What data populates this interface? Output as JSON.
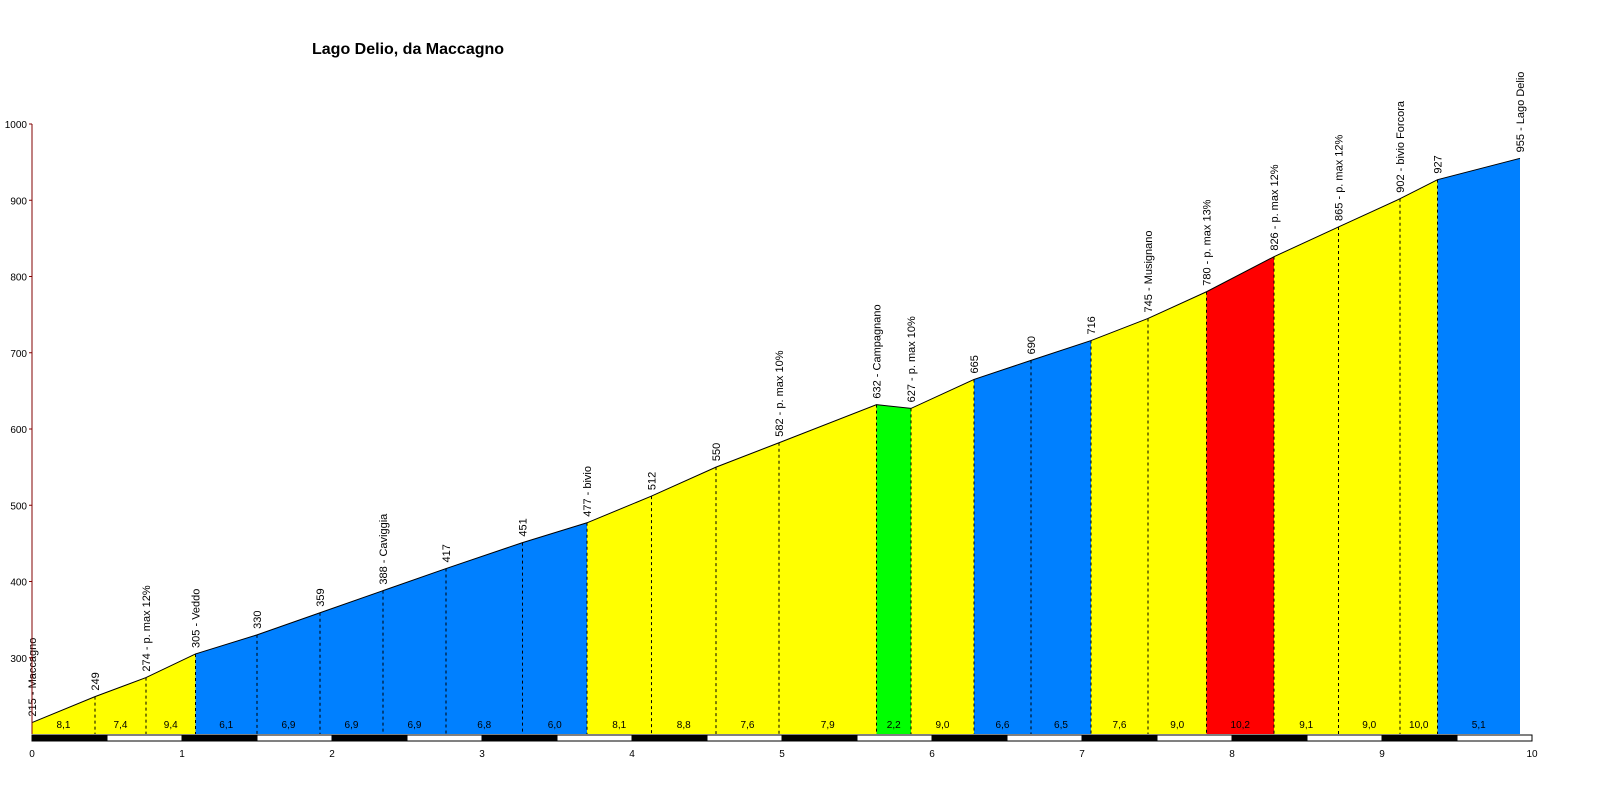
{
  "chart_data": {
    "type": "area",
    "title": "Lago Delio, da Maccagno",
    "xlabel": "",
    "ylabel": "",
    "xlim": [
      0,
      10
    ],
    "ylim": [
      200,
      1000
    ],
    "x_ticks": [
      "0",
      "1",
      "2",
      "3",
      "4",
      "5",
      "6",
      "7",
      "8",
      "9",
      "10"
    ],
    "y_ticks": [
      "300",
      "400",
      "500",
      "600",
      "700",
      "800",
      "900",
      "1000"
    ],
    "points": [
      {
        "x": 0.0,
        "y": 215,
        "label": "215 - Maccagno"
      },
      {
        "x": 0.42,
        "y": 249,
        "label": "249"
      },
      {
        "x": 0.76,
        "y": 274,
        "label": "274 - p. max 12%"
      },
      {
        "x": 1.09,
        "y": 305,
        "label": "305 - Veddo"
      },
      {
        "x": 1.5,
        "y": 330,
        "label": "330"
      },
      {
        "x": 1.92,
        "y": 359,
        "label": "359"
      },
      {
        "x": 2.34,
        "y": 388,
        "label": "388 - Caviggia"
      },
      {
        "x": 2.76,
        "y": 417,
        "label": "417"
      },
      {
        "x": 3.27,
        "y": 451,
        "label": "451"
      },
      {
        "x": 3.7,
        "y": 477,
        "label": "477 - bivio"
      },
      {
        "x": 4.13,
        "y": 512,
        "label": "512"
      },
      {
        "x": 4.56,
        "y": 550,
        "label": "550"
      },
      {
        "x": 4.98,
        "y": 582,
        "label": "582 - p. max 10%"
      },
      {
        "x": 5.63,
        "y": 632,
        "label": "632 - Campagnano"
      },
      {
        "x": 5.86,
        "y": 627,
        "label": "627 - p. max 10%"
      },
      {
        "x": 6.28,
        "y": 665,
        "label": "665"
      },
      {
        "x": 6.66,
        "y": 690,
        "label": "690"
      },
      {
        "x": 7.06,
        "y": 716,
        "label": "716"
      },
      {
        "x": 7.44,
        "y": 745,
        "label": "745 - Musignano"
      },
      {
        "x": 7.83,
        "y": 780,
        "label": "780 - p. max 13%"
      },
      {
        "x": 8.28,
        "y": 826,
        "label": "826 - p. max 12%"
      },
      {
        "x": 8.71,
        "y": 865,
        "label": "865 - p. max 12%"
      },
      {
        "x": 9.12,
        "y": 902,
        "label": "902 - bivio Forcora"
      },
      {
        "x": 9.37,
        "y": 927,
        "label": "927"
      },
      {
        "x": 9.92,
        "y": 955,
        "label": "955 - Lago Delio"
      }
    ],
    "segments": [
      {
        "grade": "8,1",
        "color": "#ffff00"
      },
      {
        "grade": "7,4",
        "color": "#ffff00"
      },
      {
        "grade": "9,4",
        "color": "#ffff00"
      },
      {
        "grade": "6,1",
        "color": "#0080ff"
      },
      {
        "grade": "6,9",
        "color": "#0080ff"
      },
      {
        "grade": "6,9",
        "color": "#0080ff"
      },
      {
        "grade": "6,9",
        "color": "#0080ff"
      },
      {
        "grade": "6,8",
        "color": "#0080ff"
      },
      {
        "grade": "6,0",
        "color": "#0080ff"
      },
      {
        "grade": "8,1",
        "color": "#ffff00"
      },
      {
        "grade": "8,8",
        "color": "#ffff00"
      },
      {
        "grade": "7,6",
        "color": "#ffff00"
      },
      {
        "grade": "7,9",
        "color": "#ffff00"
      },
      {
        "grade": "2,2",
        "color": "#00ff00"
      },
      {
        "grade": "9,0",
        "color": "#ffff00"
      },
      {
        "grade": "6,6",
        "color": "#0080ff"
      },
      {
        "grade": "6,5",
        "color": "#0080ff"
      },
      {
        "grade": "7,6",
        "color": "#ffff00"
      },
      {
        "grade": "9,0",
        "color": "#ffff00"
      },
      {
        "grade": "10,2",
        "color": "#ff0000"
      },
      {
        "grade": "9,1",
        "color": "#ffff00"
      },
      {
        "grade": "9,0",
        "color": "#ffff00"
      },
      {
        "grade": "10,0",
        "color": "#ffff00"
      },
      {
        "grade": "5,1",
        "color": "#0080ff"
      }
    ],
    "grid": false,
    "axis_color": "#800000"
  }
}
